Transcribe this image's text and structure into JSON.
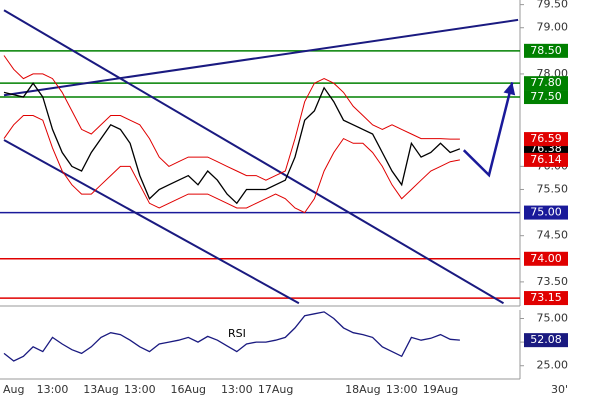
{
  "chart_data": [
    {
      "type": "line",
      "ylim": [
        73.0,
        79.6
      ],
      "yticks": [
        {
          "value": 79.5,
          "label": "79.50"
        },
        {
          "value": 79.0,
          "label": "79.00"
        },
        {
          "value": 78.0,
          "label": "78.00"
        },
        {
          "value": 76.0,
          "label": "76.00"
        },
        {
          "value": 75.5,
          "label": "75.50"
        },
        {
          "value": 74.5,
          "label": "74.50"
        },
        {
          "value": 73.5,
          "label": "73.50"
        }
      ],
      "series": [
        {
          "color": "#000000",
          "last_label": "76.38",
          "values": [
            77.6,
            77.55,
            77.5,
            77.8,
            77.5,
            76.8,
            76.3,
            76.0,
            75.9,
            76.3,
            76.6,
            76.9,
            76.8,
            76.5,
            75.8,
            75.3,
            75.5,
            75.6,
            75.7,
            75.8,
            75.6,
            75.9,
            75.7,
            75.4,
            75.2,
            75.5,
            75.5,
            75.5,
            75.6,
            75.7,
            76.2,
            77.0,
            77.2,
            77.7,
            77.4,
            77.0,
            76.9,
            76.8,
            76.7,
            76.3,
            75.9,
            75.6,
            76.5,
            76.2,
            76.3,
            76.5,
            76.3,
            76.38
          ]
        },
        {
          "color": "#e00000",
          "last_label": "76.59",
          "values": [
            78.4,
            78.1,
            77.9,
            78.0,
            78.0,
            77.9,
            77.6,
            77.2,
            76.8,
            76.7,
            76.9,
            77.1,
            77.1,
            77.0,
            76.9,
            76.6,
            76.2,
            76.0,
            76.1,
            76.2,
            76.2,
            76.2,
            76.1,
            76.0,
            75.9,
            75.8,
            75.8,
            75.7,
            75.8,
            75.9,
            76.6,
            77.4,
            77.8,
            77.9,
            77.8,
            77.6,
            77.3,
            77.1,
            76.9,
            76.8,
            76.9,
            76.8,
            76.7,
            76.6,
            76.6,
            76.6,
            76.59,
            76.59
          ]
        },
        {
          "color": "#e00000",
          "last_label": "76.14",
          "values": [
            76.6,
            76.9,
            77.1,
            77.1,
            77.0,
            76.4,
            75.9,
            75.6,
            75.4,
            75.4,
            75.6,
            75.8,
            76.0,
            76.0,
            75.6,
            75.2,
            75.1,
            75.2,
            75.3,
            75.4,
            75.4,
            75.4,
            75.3,
            75.2,
            75.1,
            75.1,
            75.2,
            75.3,
            75.4,
            75.3,
            75.1,
            75.0,
            75.3,
            75.9,
            76.3,
            76.6,
            76.5,
            76.5,
            76.3,
            76.0,
            75.6,
            75.3,
            75.5,
            75.7,
            75.9,
            76.0,
            76.1,
            76.14
          ]
        }
      ],
      "levels": [
        {
          "value": 78.5,
          "label": "78.50",
          "color": "#008000"
        },
        {
          "value": 77.8,
          "label": "77.80",
          "color": "#008000"
        },
        {
          "value": 77.5,
          "label": "77.50",
          "color": "#008000"
        },
        {
          "value": 75.0,
          "label": "75.00",
          "color": "#1a1a9a"
        },
        {
          "value": 74.0,
          "label": "74.00",
          "color": "#e00000"
        },
        {
          "value": 73.15,
          "label": "73.15",
          "color": "#e00000"
        }
      ],
      "trendlines": [
        {
          "x": [
            0,
            53
          ],
          "y": [
            77.54,
            79.17
          ],
          "color": "#1a1a80"
        },
        {
          "x": [
            0,
            51.5
          ],
          "y": [
            79.38,
            73.04
          ],
          "color": "#1a1a80"
        },
        {
          "x": [
            0,
            30.4
          ],
          "y": [
            76.57,
            73.04
          ],
          "color": "#1a1a80"
        }
      ],
      "forecast": {
        "x": [
          47.4,
          50,
          52.4
        ],
        "y": [
          76.35,
          75.81,
          77.82
        ],
        "color": "#1a1a9a"
      }
    },
    {
      "type": "line",
      "title": "RSI",
      "timeframe": "30'",
      "ylim": [
        12,
        84
      ],
      "yticks": [
        {
          "value": 75,
          "label": "75.00"
        },
        {
          "value": 50,
          "label": "50.00"
        },
        {
          "value": 25,
          "label": "25.00"
        }
      ],
      "categories": [
        null,
        "Aug",
        null,
        null,
        null,
        "13:00",
        null,
        null,
        null,
        null,
        "13Aug",
        null,
        null,
        null,
        "13:00",
        null,
        null,
        null,
        null,
        "16Aug",
        null,
        null,
        null,
        null,
        "13:00",
        null,
        null,
        null,
        "17Aug",
        null,
        null,
        null,
        null,
        null,
        null,
        null,
        null,
        "18Aug",
        null,
        null,
        null,
        "13:00",
        null,
        null,
        null,
        "19Aug",
        null,
        null
      ],
      "series": [
        {
          "color": "#1a1a80",
          "last_label": "52.08",
          "values": [
            38,
            30,
            35,
            45,
            40,
            55,
            48,
            42,
            38,
            45,
            55,
            60,
            58,
            52,
            45,
            40,
            48,
            50,
            52,
            55,
            50,
            56,
            52,
            46,
            40,
            48,
            50,
            50,
            52,
            55,
            65,
            78,
            80,
            82,
            75,
            65,
            60,
            58,
            55,
            45,
            40,
            35,
            55,
            52,
            54,
            58,
            53,
            52.08
          ]
        }
      ]
    }
  ]
}
